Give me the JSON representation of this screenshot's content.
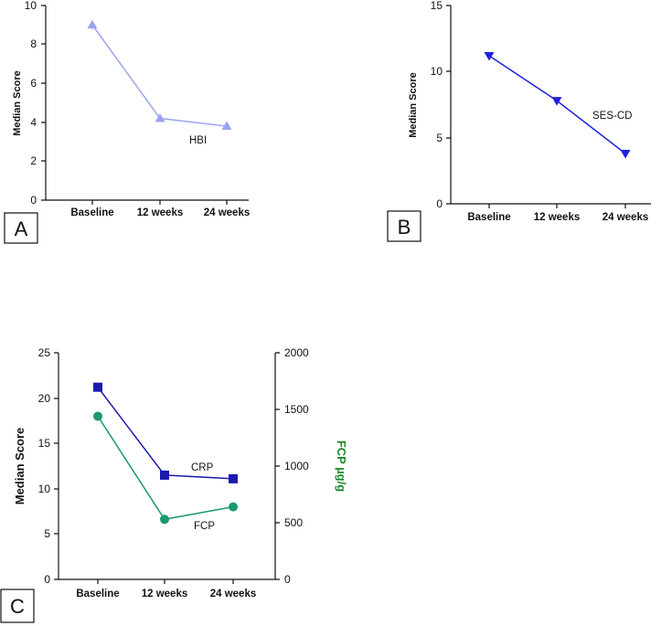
{
  "chart_data": [
    {
      "panel": "A",
      "type": "line",
      "categories": [
        "Baseline",
        "12 weeks",
        "24 weeks"
      ],
      "series": [
        {
          "name": "HBI",
          "values": [
            9.0,
            4.2,
            3.8
          ],
          "color": "#9aa3f0",
          "marker": "triangle-up"
        }
      ],
      "ylabel": "Median Score",
      "ylim": [
        0,
        10
      ],
      "yticks": [
        "0",
        "2",
        "4",
        "6",
        "8",
        "10"
      ],
      "annotations": [
        "HBI"
      ]
    },
    {
      "panel": "B",
      "type": "line",
      "categories": [
        "Baseline",
        "12 weeks",
        "24 weeks"
      ],
      "series": [
        {
          "name": "SES-CD",
          "values": [
            11.2,
            7.8,
            3.8
          ],
          "color": "#1f1fe0",
          "marker": "triangle-down"
        }
      ],
      "ylabel": "Median Score",
      "ylim": [
        0,
        15
      ],
      "yticks": [
        "0",
        "5",
        "10",
        "15"
      ],
      "annotations": [
        "SES-CD"
      ]
    },
    {
      "panel": "C",
      "type": "line",
      "categories": [
        "Baseline",
        "12 weeks",
        "24 weeks"
      ],
      "series": [
        {
          "name": "CRP",
          "values": [
            21.2,
            11.5,
            11.1
          ],
          "color": "#1a1aaf",
          "marker": "square",
          "axis": "left"
        },
        {
          "name": "FCP",
          "values": [
            1440,
            530,
            640
          ],
          "color": "#1a9a6a",
          "marker": "circle",
          "axis": "right"
        }
      ],
      "ylabel": "Median Score",
      "ylim": [
        0,
        25
      ],
      "yticks": [
        "0",
        "5",
        "10",
        "15",
        "20",
        "25"
      ],
      "y2label": "FCP µg/g",
      "y2color": "#1a8a2a",
      "y2lim": [
        0,
        2000
      ],
      "y2ticks": [
        "0",
        "500",
        "1000",
        "1500",
        "2000"
      ],
      "annotations": [
        "CRP",
        "FCP"
      ]
    }
  ]
}
